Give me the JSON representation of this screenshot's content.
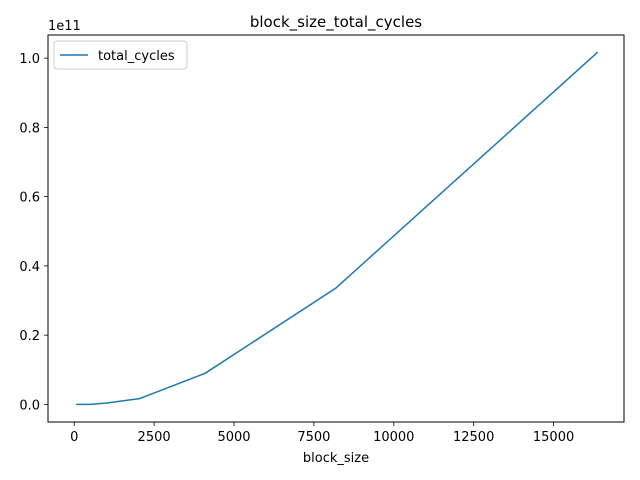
{
  "chart_data": {
    "type": "line",
    "title": "block_size_total_cycles",
    "xlabel": "block_size",
    "ylabel": "",
    "y_offset_text": "1e11",
    "y_scale_factor": 100000000000.0,
    "xlim": [
      -820,
      17204
    ],
    "ylim": [
      -0.0508,
      1.0668
    ],
    "x_ticks": [
      0,
      2500,
      5000,
      7500,
      10000,
      12500,
      15000
    ],
    "x_tick_labels": [
      "0",
      "2500",
      "5000",
      "7500",
      "10000",
      "12500",
      "15000"
    ],
    "y_ticks": [
      0.0,
      0.2,
      0.4,
      0.6,
      0.8,
      1.0
    ],
    "y_tick_labels": [
      "0.0",
      "0.2",
      "0.4",
      "0.6",
      "0.8",
      "1.0"
    ],
    "grid": false,
    "legend_position": "top-left",
    "series": [
      {
        "name": "total_cycles",
        "color": "#1f77b4",
        "x": [
          64,
          128,
          256,
          512,
          1024,
          2048,
          4096,
          8192,
          16384
        ],
        "y": [
          0.0,
          1e-05,
          5e-05,
          0.0002,
          0.004,
          0.0168,
          0.0898,
          0.3363,
          1.0174
        ]
      }
    ]
  }
}
